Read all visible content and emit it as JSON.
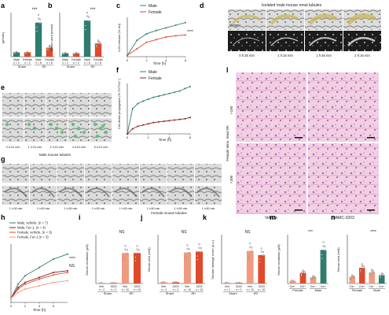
{
  "panel_letters": {
    "a": "a",
    "b": "b",
    "c": "c",
    "d": "d",
    "e": "e",
    "f": "f",
    "g": "g",
    "h": "h",
    "i": "i",
    "j": "j",
    "k": "k",
    "l": "l",
    "m": "m",
    "n": "n"
  },
  "colors": {
    "teal": "#2e7d6e",
    "red": "#e04a2a",
    "salmon": "#f09a80",
    "darkred": "#8b1e1e",
    "green_bright": "#44c06a",
    "gray": "#888888",
    "histo_pink": "#efc6dc",
    "histo_purple": "#7d5a9a"
  },
  "panel_a": {
    "ylabel": "(µmol/L)",
    "sig": "***",
    "groups_top": [
      "Male",
      "Female",
      "Male",
      "Female"
    ],
    "groups_n": [
      "n = 2",
      "n = 2",
      "n = 8",
      "n = 8"
    ],
    "groups_bottom": [
      "Sham",
      "IRI"
    ]
  },
  "panel_b": {
    "ylabel": "Serum urea (mmol)",
    "sig": "***",
    "groups_top": [
      "Male",
      "Female",
      "Male",
      "Female"
    ],
    "groups_n": [
      "n = 2",
      "n = 2",
      "n = 8",
      "n = 8"
    ],
    "groups_bottom": [
      "Sham",
      "IRI"
    ]
  },
  "panel_c": {
    "legend": [
      "Male",
      "Female"
    ],
    "ylabel": "LDH release (% ctrl)",
    "xlabel": "Time (h)",
    "xticks": [
      "0",
      "2",
      "4",
      "6"
    ],
    "sig": "****"
  },
  "panel_d": {
    "title": "Isolated male mouse renal tubules",
    "row_labels": [
      "Merged",
      "SYTOX"
    ],
    "times": [
      "0 h:26 min",
      "1 h:16 min",
      "1 h:46 min",
      "2 h:16 min"
    ]
  },
  "panel_e": {
    "times": [
      "0 h:31 min",
      "1 h:31 min",
      "2 h:01 min",
      "4 h:01 min",
      "6 h:01 min"
    ],
    "caption": "Male mouse tubules"
  },
  "panel_f": {
    "legend": [
      "Male",
      "Female"
    ],
    "ylabel": "Cell death propagation (% SYTOX⁺)",
    "xlabel": "Time (h)",
    "xticks": [
      "0",
      "2",
      "4",
      "6"
    ]
  },
  "panel_g": {
    "times": [
      "1 h:30 min",
      "1 h:50 min",
      "1 h:50 min",
      "1 h:50 min",
      "1 h:50 min",
      "1 h:50 min",
      "1 h:50 min",
      "1 h:50 min"
    ],
    "caption": "Female mouse tubules"
  },
  "panel_h": {
    "legend": [
      "Male, vehicle, (n = 7)",
      "Male, Fer-1, (n = 4)",
      "Female, vehicle, (n = 3)",
      "Female, Fer-1 (n = 3)"
    ],
    "xlabel": "Time (h)",
    "xticks": [
      "0",
      "2",
      "4",
      "6"
    ],
    "sig": "****",
    "ns": "NS"
  },
  "panel_i": {
    "ylabel": "Serum creatinine (µM)",
    "ns": "NS",
    "groups_top": [
      "Veh.",
      "3203",
      "Veh.",
      "3203"
    ],
    "groups_n": [
      "n = 2",
      "n = 2",
      "n = 10",
      "n = 10"
    ],
    "groups_bottom": [
      "Sham",
      "IRI"
    ]
  },
  "panel_j": {
    "ylabel": "Serum urea (mM)",
    "ns": "NS",
    "groups_top": [
      "Veh.",
      "3203",
      "Veh.",
      "3203"
    ],
    "groups_n": [
      "n = 2",
      "n = 2",
      "n = 10",
      "n = 10"
    ],
    "groups_bottom": [
      "Sham",
      "IRI"
    ]
  },
  "panel_k": {
    "ylabel": "Tubular damage score (a.u.)",
    "ns": "NS",
    "groups_top": [
      "Veh.",
      "3203",
      "Veh.",
      "3203"
    ],
    "groups_n": [
      "n = 2",
      "n = 2",
      "n = 10",
      "n = 10"
    ],
    "groups_bottom": [
      "Sham",
      "IRI"
    ]
  },
  "panel_l": {
    "side_label": "Female mice, renal IRI",
    "mag_top": "×100",
    "mag_bottom": "×200",
    "bottom_labels": [
      "Vehicle",
      "UAMC-3203"
    ]
  },
  "panel_m": {
    "ylabel": "Serum creatinine (µM)",
    "sig": "***",
    "groups_top": [
      "Cre⁻",
      "Cre⁺",
      "Cre⁻",
      "Cre⁺"
    ],
    "groups_bottom": [
      "Female",
      "Male"
    ]
  },
  "panel_n": {
    "ylabel": "Serum urea (mM)",
    "sig": "****",
    "groups_top": [
      "Cre⁻",
      "Cre⁺",
      "Cre⁻",
      "Cre⁺"
    ],
    "groups_bottom": [
      "Female",
      "Male"
    ]
  },
  "chart_data": [
    {
      "id": "a",
      "type": "bar",
      "categories": [
        "Sham Male",
        "Sham Female",
        "IRI Male",
        "IRI Female"
      ],
      "values": [
        22,
        22,
        170,
        45
      ],
      "ylim": [
        0,
        220
      ]
    },
    {
      "id": "b",
      "type": "bar",
      "categories": [
        "Sham Male",
        "Sham Female",
        "IRI Male",
        "IRI Female"
      ],
      "values": [
        8,
        8,
        82,
        30
      ],
      "ylim": [
        0,
        100
      ]
    },
    {
      "id": "c",
      "type": "line",
      "x": [
        0,
        1,
        2,
        3,
        4,
        5,
        6
      ],
      "series": [
        {
          "name": "Male",
          "values": [
            2,
            25,
            35,
            40,
            44,
            48,
            52
          ]
        },
        {
          "name": "Female",
          "values": [
            2,
            12,
            22,
            26,
            30,
            32,
            33
          ]
        }
      ],
      "xlim": [
        0,
        6
      ],
      "ylim": [
        0,
        60
      ]
    },
    {
      "id": "f",
      "type": "line",
      "x": [
        0,
        0.5,
        1,
        1.5,
        2,
        2.5,
        3,
        3.5,
        4,
        4.5,
        5,
        5.5,
        6
      ],
      "series": [
        {
          "name": "Male",
          "values": [
            0,
            40,
            48,
            52,
            55,
            58,
            60,
            62,
            64,
            66,
            68,
            72,
            75
          ]
        },
        {
          "name": "Female",
          "values": [
            0,
            8,
            12,
            14,
            16,
            18,
            19,
            20,
            21,
            22,
            23,
            24,
            26
          ]
        }
      ],
      "xlim": [
        0,
        6
      ],
      "ylim": [
        0,
        80
      ]
    },
    {
      "id": "h",
      "type": "line",
      "x": [
        0,
        1,
        2,
        4,
        6,
        8
      ],
      "series": [
        {
          "name": "Male, vehicle, (n = 7)",
          "values": [
            5,
            22,
            32,
            42,
            52,
            58
          ]
        },
        {
          "name": "Male, Fer-1, (n = 4)",
          "values": [
            5,
            18,
            24,
            30,
            36,
            38
          ]
        },
        {
          "name": "Female, vehicle, (n = 3)",
          "values": [
            5,
            16,
            22,
            28,
            33,
            36
          ]
        },
        {
          "name": "Female, Fer-1 (n = 3)",
          "values": [
            5,
            12,
            16,
            20,
            24,
            26
          ]
        }
      ],
      "xlim": [
        0,
        8
      ],
      "ylim": [
        0,
        70
      ]
    },
    {
      "id": "i",
      "type": "bar",
      "categories": [
        "Sham Veh.",
        "Sham 3203",
        "IRI Veh.",
        "IRI 3203"
      ],
      "values": [
        3,
        3,
        150,
        150
      ],
      "ylim": [
        0,
        240
      ]
    },
    {
      "id": "j",
      "type": "bar",
      "categories": [
        "Sham Veh.",
        "Sham 3203",
        "IRI Veh.",
        "IRI 3203"
      ],
      "values": [
        3,
        3,
        70,
        72
      ],
      "ylim": [
        0,
        110
      ]
    },
    {
      "id": "k",
      "type": "bar",
      "categories": [
        "Sham Veh.",
        "Sham 3203",
        "IRI Veh.",
        "IRI 3203"
      ],
      "values": [
        0.2,
        0.2,
        8,
        7
      ],
      "ylim": [
        0,
        12
      ]
    },
    {
      "id": "m",
      "type": "bar",
      "categories": [
        "Female Cre⁻",
        "Female Cre⁺",
        "Male Cre⁻",
        "Male Cre⁺"
      ],
      "values": [
        18,
        70,
        40,
        220
      ],
      "ylim": [
        0,
        320
      ]
    },
    {
      "id": "n",
      "type": "bar",
      "categories": [
        "Female Cre⁻",
        "Female Cre⁺",
        "Male Cre⁻",
        "Male Cre⁺"
      ],
      "values": [
        18,
        42,
        30,
        22
      ],
      "ylim": [
        0,
        130
      ]
    }
  ]
}
